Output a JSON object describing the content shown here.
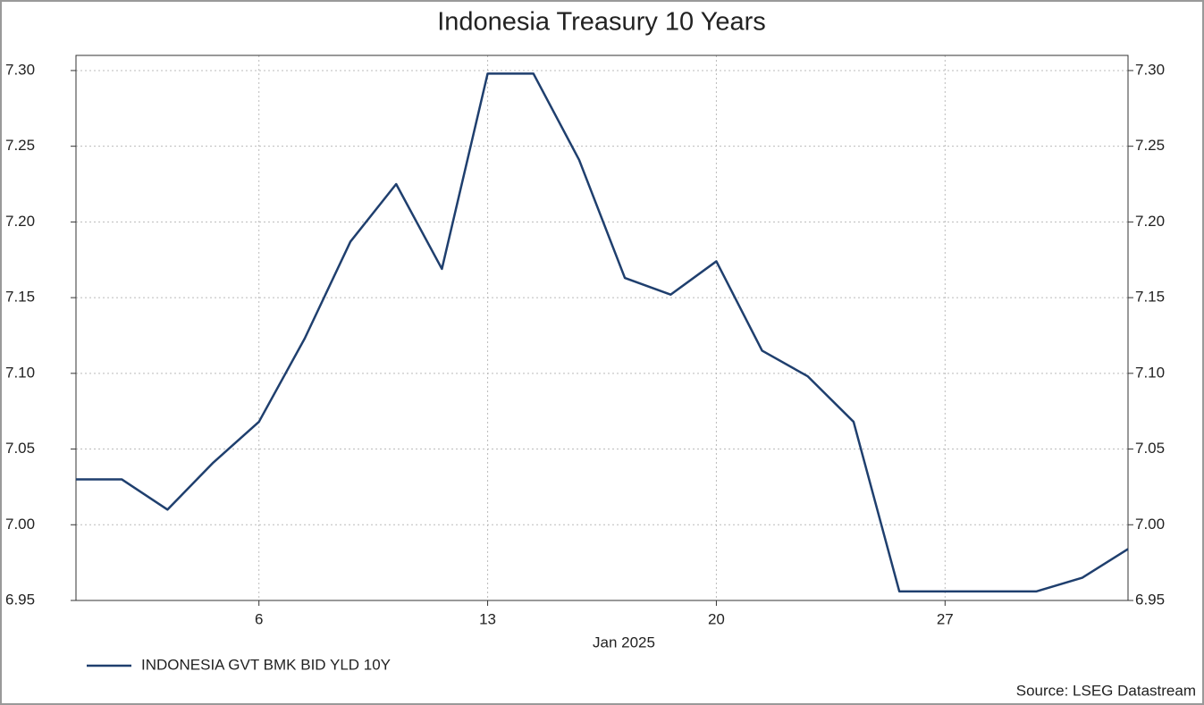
{
  "chart_data": {
    "type": "line",
    "title": "Indonesia Treasury 10 Years",
    "x_label": "Jan 2025",
    "source": "Source: LSEG Datastream",
    "categories": [
      null,
      null,
      null,
      null,
      "6",
      null,
      null,
      null,
      null,
      "13",
      null,
      null,
      null,
      null,
      "20",
      null,
      null,
      null,
      null,
      "27",
      null,
      null,
      null,
      null
    ],
    "series": [
      {
        "name": "INDONESIA GVT BMK BID YLD 10Y",
        "color": "#1f3f6e",
        "values": [
          7.03,
          7.03,
          7.01,
          7.041,
          7.068,
          7.123,
          7.187,
          7.225,
          7.169,
          7.298,
          7.298,
          7.241,
          7.163,
          7.152,
          7.174,
          7.115,
          7.098,
          7.068,
          6.956,
          6.956,
          6.956,
          6.956,
          6.965,
          6.984
        ]
      }
    ],
    "ylim": [
      6.95,
      7.31
    ],
    "yticks": [
      {
        "value": 6.95,
        "label": "6.95"
      },
      {
        "value": 7.0,
        "label": "7.00"
      },
      {
        "value": 7.05,
        "label": "7.05"
      },
      {
        "value": 7.1,
        "label": "7.10"
      },
      {
        "value": 7.15,
        "label": "7.15"
      },
      {
        "value": 7.2,
        "label": "7.20"
      },
      {
        "value": 7.25,
        "label": "7.25"
      },
      {
        "value": 7.3,
        "label": "7.30"
      }
    ],
    "grid": true
  }
}
